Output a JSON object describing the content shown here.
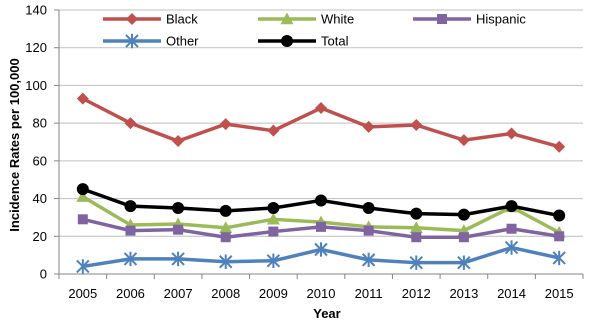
{
  "chart_data": {
    "type": "line",
    "title": "",
    "xlabel": "Year",
    "ylabel": "Incidence Rates per 100,000",
    "x": [
      "2005",
      "2006",
      "2007",
      "2008",
      "2009",
      "2010",
      "2011",
      "2012",
      "2013",
      "2014",
      "2015"
    ],
    "ylim": [
      0,
      140
    ],
    "yticks": [
      "0",
      "20",
      "40",
      "60",
      "80",
      "100",
      "120",
      "140"
    ],
    "grid": true,
    "legend_position": "top",
    "series": [
      {
        "name": "Black",
        "color": "#c0504d",
        "marker": "diamond",
        "values": [
          93,
          80,
          70.5,
          79.5,
          76,
          88,
          78,
          79,
          71,
          74.5,
          67.5
        ]
      },
      {
        "name": "White",
        "color": "#9bbb59",
        "marker": "triangle",
        "values": [
          41,
          26,
          26.5,
          24.5,
          29,
          27.5,
          25,
          24.5,
          23,
          35.5,
          22
        ]
      },
      {
        "name": "Hispanic",
        "color": "#8064a2",
        "marker": "square",
        "values": [
          29,
          23,
          23.5,
          19.5,
          22.5,
          25,
          23,
          19.5,
          19.5,
          24,
          20
        ]
      },
      {
        "name": "Other",
        "color": "#4f81bd",
        "marker": "asterisk",
        "values": [
          4,
          8,
          8,
          6.5,
          7,
          13,
          7.5,
          6,
          6,
          14,
          8.5
        ]
      },
      {
        "name": "Total",
        "color": "#000000",
        "marker": "circle",
        "values": [
          45,
          36,
          35,
          33.5,
          35,
          39,
          35,
          32,
          31.5,
          36,
          31
        ]
      }
    ]
  }
}
